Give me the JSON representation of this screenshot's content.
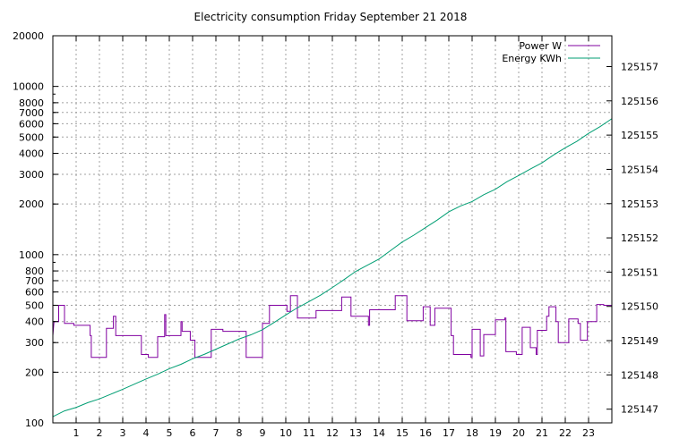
{
  "chart_data": {
    "type": "line",
    "title": "Electricity consumption Friday September 21 2018",
    "x": {
      "range": [
        0,
        24
      ],
      "ticks": [
        1,
        2,
        3,
        4,
        5,
        6,
        7,
        8,
        9,
        10,
        11,
        12,
        13,
        14,
        15,
        16,
        17,
        18,
        19,
        20,
        21,
        22,
        23
      ],
      "tick_labels": [
        "1",
        "2",
        "3",
        "4",
        "5",
        "6",
        "7",
        "8",
        "9",
        "10",
        "11",
        "12",
        "13",
        "14",
        "15",
        "16",
        "17",
        "18",
        "19",
        "20",
        "21",
        "22",
        "23"
      ]
    },
    "y_left": {
      "scale": "log",
      "range": [
        100,
        20000
      ],
      "ticks": [
        100,
        200,
        300,
        400,
        500,
        600,
        700,
        800,
        1000,
        2000,
        3000,
        4000,
        5000,
        6000,
        7000,
        8000,
        10000,
        20000
      ],
      "tick_labels": [
        "100",
        "200",
        "300",
        "400",
        "500",
        "600",
        "700",
        "800",
        "1000",
        "2000",
        "3000",
        "4000",
        "5000",
        "6000",
        "7000",
        "8000",
        "10000",
        "20000"
      ]
    },
    "y_right": {
      "scale": "linear",
      "range": [
        125146.6,
        125157.9
      ],
      "ticks": [
        125147,
        125148,
        125149,
        125150,
        125151,
        125152,
        125153,
        125154,
        125155,
        125156,
        125157
      ],
      "tick_labels": [
        "125147",
        "125148",
        "125149",
        "125150",
        "125151",
        "125152",
        "125153",
        "125154",
        "125155",
        "125156",
        "125157"
      ]
    },
    "grid": true,
    "legend_position": "top-right",
    "series": [
      {
        "name": "Power W",
        "axis": "left",
        "color": "#8000a0",
        "step": true,
        "points": [
          [
            0,
            330
          ],
          [
            0.05,
            400
          ],
          [
            0.25,
            400
          ],
          [
            0.25,
            500
          ],
          [
            0.5,
            500
          ],
          [
            0.5,
            390
          ],
          [
            0.9,
            390
          ],
          [
            0.9,
            380
          ],
          [
            1.6,
            380
          ],
          [
            1.6,
            330
          ],
          [
            1.65,
            330
          ],
          [
            1.65,
            245
          ],
          [
            2.3,
            245
          ],
          [
            2.3,
            365
          ],
          [
            2.6,
            365
          ],
          [
            2.6,
            430
          ],
          [
            2.7,
            430
          ],
          [
            2.7,
            330
          ],
          [
            3.8,
            330
          ],
          [
            3.8,
            255
          ],
          [
            4.1,
            255
          ],
          [
            4.1,
            245
          ],
          [
            4.5,
            245
          ],
          [
            4.5,
            325
          ],
          [
            4.8,
            325
          ],
          [
            4.8,
            440
          ],
          [
            4.85,
            440
          ],
          [
            4.85,
            330
          ],
          [
            5.5,
            330
          ],
          [
            5.5,
            400
          ],
          [
            5.55,
            400
          ],
          [
            5.55,
            350
          ],
          [
            5.9,
            350
          ],
          [
            5.9,
            310
          ],
          [
            6.1,
            310
          ],
          [
            6.1,
            245
          ],
          [
            6.8,
            245
          ],
          [
            6.8,
            360
          ],
          [
            7.3,
            360
          ],
          [
            7.3,
            350
          ],
          [
            8.3,
            350
          ],
          [
            8.3,
            245
          ],
          [
            9.0,
            245
          ],
          [
            9.0,
            390
          ],
          [
            9.3,
            390
          ],
          [
            9.3,
            500
          ],
          [
            10.05,
            500
          ],
          [
            10.05,
            460
          ],
          [
            10.2,
            460
          ],
          [
            10.2,
            570
          ],
          [
            10.5,
            570
          ],
          [
            10.5,
            420
          ],
          [
            11.3,
            420
          ],
          [
            11.3,
            465
          ],
          [
            12.4,
            465
          ],
          [
            12.4,
            560
          ],
          [
            12.8,
            560
          ],
          [
            12.8,
            430
          ],
          [
            13.55,
            430
          ],
          [
            13.55,
            380
          ],
          [
            13.6,
            380
          ],
          [
            13.6,
            470
          ],
          [
            14.7,
            470
          ],
          [
            14.7,
            570
          ],
          [
            15.2,
            570
          ],
          [
            15.2,
            405
          ],
          [
            15.9,
            405
          ],
          [
            15.9,
            490
          ],
          [
            16.2,
            490
          ],
          [
            16.2,
            380
          ],
          [
            16.4,
            380
          ],
          [
            16.4,
            480
          ],
          [
            17.1,
            480
          ],
          [
            17.1,
            330
          ],
          [
            17.2,
            330
          ],
          [
            17.2,
            255
          ],
          [
            17.95,
            255
          ],
          [
            17.95,
            245
          ],
          [
            18.0,
            245
          ],
          [
            18.0,
            360
          ],
          [
            18.35,
            360
          ],
          [
            18.35,
            250
          ],
          [
            18.5,
            250
          ],
          [
            18.5,
            335
          ],
          [
            19.0,
            335
          ],
          [
            19.0,
            410
          ],
          [
            19.4,
            410
          ],
          [
            19.4,
            420
          ],
          [
            19.45,
            420
          ],
          [
            19.45,
            265
          ],
          [
            19.9,
            265
          ],
          [
            19.9,
            255
          ],
          [
            20.15,
            255
          ],
          [
            20.15,
            370
          ],
          [
            20.5,
            370
          ],
          [
            20.5,
            280
          ],
          [
            20.75,
            280
          ],
          [
            20.75,
            255
          ],
          [
            20.8,
            255
          ],
          [
            20.8,
            355
          ],
          [
            21.2,
            355
          ],
          [
            21.2,
            430
          ],
          [
            21.3,
            430
          ],
          [
            21.3,
            490
          ],
          [
            21.6,
            490
          ],
          [
            21.6,
            400
          ],
          [
            21.7,
            400
          ],
          [
            21.7,
            300
          ],
          [
            22.15,
            300
          ],
          [
            22.15,
            415
          ],
          [
            22.55,
            415
          ],
          [
            22.55,
            390
          ],
          [
            22.65,
            390
          ],
          [
            22.65,
            310
          ],
          [
            22.95,
            310
          ],
          [
            22.95,
            400
          ],
          [
            23.35,
            400
          ],
          [
            23.35,
            505
          ],
          [
            23.65,
            505
          ],
          [
            23.65,
            500
          ],
          [
            24,
            500
          ]
        ]
      },
      {
        "name": "Energy KWh",
        "axis": "right",
        "color": "#009e73",
        "step": false,
        "points": [
          [
            0,
            125146.78
          ],
          [
            0.5,
            125146.95
          ],
          [
            1,
            125147.05
          ],
          [
            1.5,
            125147.19
          ],
          [
            2,
            125147.3
          ],
          [
            2.5,
            125147.44
          ],
          [
            3,
            125147.58
          ],
          [
            3.5,
            125147.73
          ],
          [
            4,
            125147.88
          ],
          [
            4.5,
            125148.02
          ],
          [
            5,
            125148.18
          ],
          [
            5.5,
            125148.31
          ],
          [
            6,
            125148.47
          ],
          [
            6.5,
            125148.6
          ],
          [
            7,
            125148.75
          ],
          [
            7.5,
            125148.9
          ],
          [
            8,
            125149.05
          ],
          [
            8.5,
            125149.17
          ],
          [
            9,
            125149.32
          ],
          [
            9.5,
            125149.53
          ],
          [
            10,
            125149.75
          ],
          [
            10.5,
            125149.96
          ],
          [
            11,
            125150.14
          ],
          [
            11.5,
            125150.33
          ],
          [
            12,
            125150.55
          ],
          [
            12.5,
            125150.78
          ],
          [
            13,
            125151.02
          ],
          [
            13.5,
            125151.2
          ],
          [
            14,
            125151.38
          ],
          [
            14.5,
            125151.63
          ],
          [
            15,
            125151.88
          ],
          [
            15.5,
            125152.08
          ],
          [
            16,
            125152.3
          ],
          [
            16.5,
            125152.52
          ],
          [
            17,
            125152.76
          ],
          [
            17.5,
            125152.93
          ],
          [
            18,
            125153.06
          ],
          [
            18.5,
            125153.26
          ],
          [
            19,
            125153.42
          ],
          [
            19.5,
            125153.64
          ],
          [
            20,
            125153.82
          ],
          [
            20.5,
            125154.01
          ],
          [
            21,
            125154.19
          ],
          [
            21.5,
            125154.42
          ],
          [
            22,
            125154.63
          ],
          [
            22.5,
            125154.82
          ],
          [
            23,
            125155.05
          ],
          [
            23.5,
            125155.25
          ],
          [
            24,
            125155.48
          ]
        ]
      }
    ]
  }
}
